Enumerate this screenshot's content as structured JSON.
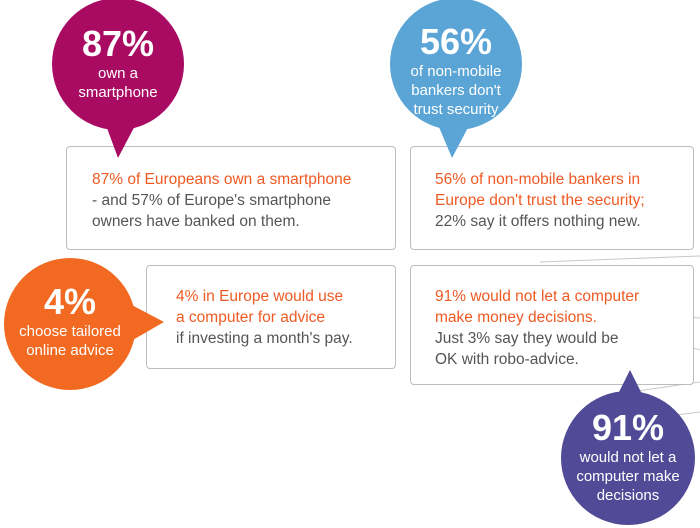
{
  "colors": {
    "magenta": "#a90b62",
    "blue": "#5aa5d6",
    "orange": "#f26a21",
    "purple": "#514a96",
    "highlight_text": "#ee5a24",
    "body_text": "#555555",
    "border": "#bdbdbd"
  },
  "stats": [
    {
      "id": "smartphone",
      "percent": "87%",
      "bubble_lines": [
        "own a",
        "smartphone"
      ],
      "card_orange_lines": [
        "87% of Europeans own a smartphone"
      ],
      "card_gray_lines": [
        "- and 57% of Europe's smartphone",
        "owners have banked on them."
      ]
    },
    {
      "id": "security",
      "percent": "56%",
      "bubble_lines": [
        "of non-mobile",
        "bankers don't",
        "trust security"
      ],
      "card_orange_lines": [
        "56% of non-mobile bankers in",
        "Europe don't trust the security;"
      ],
      "card_gray_lines": [
        "22% say it offers nothing new."
      ]
    },
    {
      "id": "advice",
      "percent": "4%",
      "bubble_lines": [
        "choose tailored",
        "online advice"
      ],
      "card_orange_lines": [
        "4% in Europe would use",
        "a computer for advice"
      ],
      "card_gray_lines": [
        "if investing a month's pay."
      ]
    },
    {
      "id": "decisions",
      "percent": "91%",
      "bubble_lines": [
        "would not let a",
        "computer make",
        "decisions"
      ],
      "card_orange_lines": [
        "91% would not let a computer",
        "make money decisions."
      ],
      "card_gray_lines": [
        "Just 3% say they would be",
        "OK with robo-advice."
      ]
    }
  ]
}
